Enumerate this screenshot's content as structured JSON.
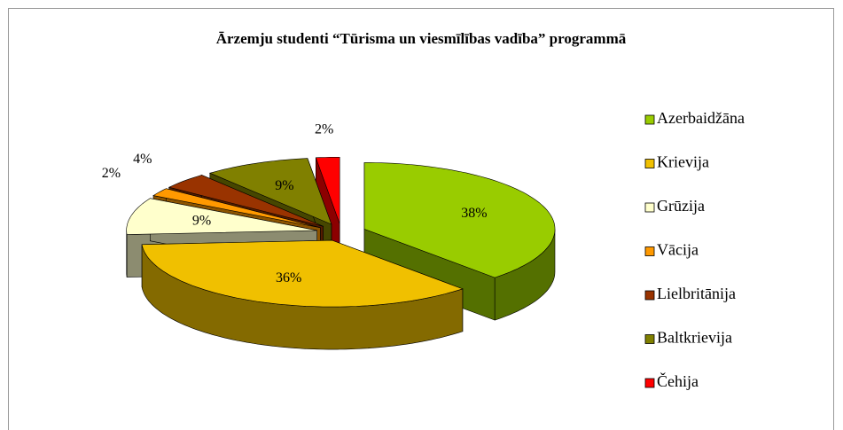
{
  "chart_data": {
    "type": "pie3d",
    "title": "Ārzemju studenti “Tūrisma un viesmīlības vadība” programmā",
    "categories": [
      "Azerbaidžāna",
      "Krievija",
      "Grūzija",
      "Vācija",
      "Lielbritānija",
      "Baltkrievija",
      "Čehija"
    ],
    "values": [
      38,
      36,
      9,
      2,
      4,
      9,
      2
    ],
    "value_labels": [
      "38%",
      "36%",
      "9%",
      "2%",
      "4%",
      "9%",
      "2%"
    ],
    "colors": [
      "#99cc00",
      "#f0c000",
      "#ffffcc",
      "#ff9900",
      "#993300",
      "#808000",
      "#ff0000"
    ],
    "legend": "right"
  }
}
